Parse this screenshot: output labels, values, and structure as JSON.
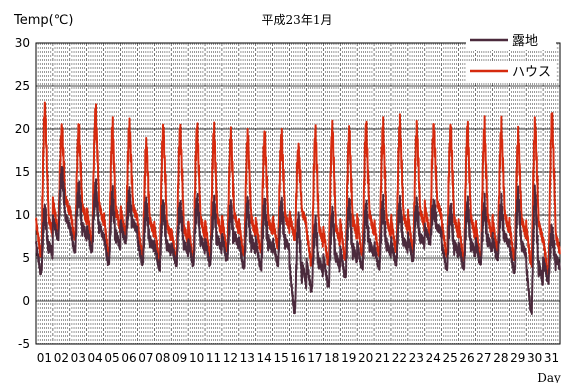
{
  "chart_data": {
    "type": "line",
    "title": "平成23年1月",
    "ylabel": "Temp(℃)",
    "xlabel": "Day",
    "ylim": [
      -5,
      30
    ],
    "yticks": [
      "-5",
      "0",
      "5",
      "10",
      "15",
      "20",
      "25",
      "30"
    ],
    "xlim": [
      1,
      32
    ],
    "days": [
      "01",
      "02",
      "03",
      "04",
      "05",
      "06",
      "07",
      "08",
      "09",
      "10",
      "11",
      "12",
      "13",
      "14",
      "15",
      "16",
      "17",
      "18",
      "19",
      "20",
      "21",
      "22",
      "23",
      "24",
      "25",
      "26",
      "27",
      "28",
      "29",
      "30",
      "31"
    ],
    "grid": "horizontal solid at each y tick; dashed vertical lines every 3 hours",
    "legend_position": "top-right",
    "series": [
      {
        "name": "ハウス",
        "color": "#d62a0e",
        "daily_min": [
          5.5,
          8.5,
          7.5,
          7.0,
          5.5,
          8.0,
          5.5,
          5.0,
          5.0,
          5.0,
          5.5,
          6.0,
          5.5,
          6.0,
          6.5,
          7.5,
          4.5,
          4.5,
          5.0,
          5.5,
          5.5,
          6.0,
          6.0,
          8.0,
          5.5,
          5.0,
          5.0,
          6.0,
          5.0,
          4.5,
          3.5
        ],
        "daily_max": [
          22.5,
          20.0,
          20.0,
          22.0,
          20.0,
          20.0,
          18.0,
          20.0,
          20.0,
          20.0,
          19.5,
          19.0,
          19.0,
          19.0,
          19.0,
          17.5,
          19.5,
          20.0,
          19.5,
          20.0,
          20.0,
          20.5,
          20.0,
          20.0,
          20.0,
          20.0,
          20.0,
          20.0,
          19.0,
          20.5,
          21.5
        ],
        "night_level": [
          9.0,
          11.5,
          10.5,
          10.5,
          10.0,
          10.5,
          9.0,
          8.5,
          8.0,
          9.0,
          9.0,
          9.5,
          9.0,
          9.0,
          9.5,
          10.0,
          8.0,
          8.0,
          9.0,
          9.5,
          9.0,
          9.5,
          10.0,
          11.0,
          9.0,
          9.0,
          9.0,
          9.5,
          9.0,
          8.5,
          7.0
        ]
      },
      {
        "name": "露地",
        "color": "#4b2a3c",
        "daily_min": [
          3.5,
          7.5,
          6.0,
          6.0,
          4.5,
          7.0,
          4.5,
          4.0,
          4.5,
          4.5,
          4.5,
          5.0,
          4.0,
          4.0,
          4.5,
          -1.0,
          1.5,
          2.0,
          3.0,
          4.0,
          4.0,
          4.5,
          5.0,
          7.0,
          4.0,
          4.0,
          4.5,
          5.0,
          3.5,
          -1.0,
          2.5
        ],
        "daily_max": [
          10.5,
          15.0,
          13.0,
          13.0,
          12.0,
          12.0,
          11.0,
          11.0,
          11.0,
          11.5,
          11.0,
          10.5,
          11.0,
          11.0,
          11.0,
          9.5,
          9.0,
          10.0,
          11.0,
          10.5,
          11.0,
          11.0,
          11.0,
          11.0,
          10.5,
          11.0,
          11.0,
          11.0,
          12.0,
          12.5,
          8.0
        ],
        "night_level": [
          6.5,
          9.5,
          8.5,
          8.5,
          7.5,
          9.0,
          7.0,
          6.5,
          6.5,
          7.0,
          7.0,
          7.5,
          7.0,
          7.0,
          7.0,
          4.0,
          4.5,
          5.0,
          6.0,
          6.5,
          6.5,
          7.0,
          7.5,
          8.5,
          6.5,
          6.5,
          7.0,
          7.5,
          6.5,
          4.0,
          5.0
        ]
      }
    ]
  }
}
